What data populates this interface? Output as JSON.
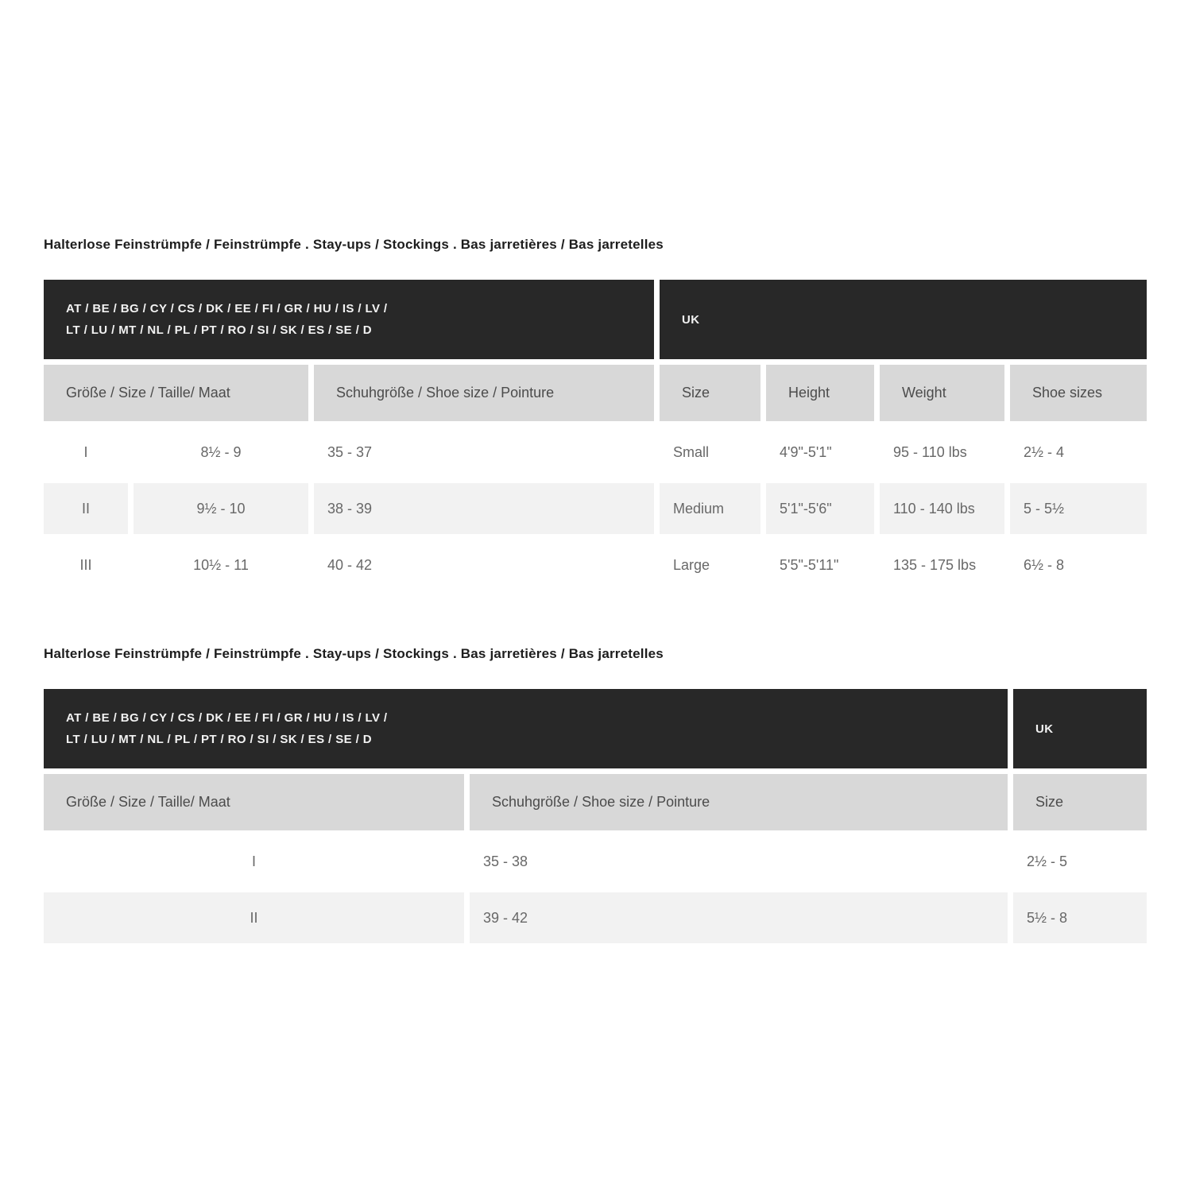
{
  "colors": {
    "header_bar_bg": "#282828",
    "header_bar_text": "#f2f2f2",
    "column_header_bg": "#d8d8d8",
    "column_header_text": "#4c4c4c",
    "stripe_row_bg": "#f2f2f2",
    "body_text": "#686868",
    "title_text": "#1d1d1d"
  },
  "section1": {
    "title": "Halterlose Feinstrümpfe / Feinstrümpfe . Stay-ups / Stockings . Bas jarretières / Bas jarretelles",
    "eu_header_line1": "AT / BE / BG / CY / CS / DK / EE / FI / GR / HU / IS / LV /",
    "eu_header_line2": "LT / LU / MT / NL / PL / PT / RO / SI / SK / ES / SE / D",
    "uk_header": "UK",
    "columns": {
      "groesse": "Größe / Size / Taille/ Maat",
      "schuhgroesse": "Schuhgröße / Shoe size / Pointure",
      "size": "Size",
      "height": "Height",
      "weight": "Weight",
      "shoe_sizes": "Shoe sizes"
    },
    "rows": [
      {
        "numeral": "I",
        "groesse": "8½ - 9",
        "schuhgroesse": "35 - 37",
        "size": "Small",
        "height": "4'9\"-5'1\"",
        "weight": "95 - 110 lbs",
        "shoe_sizes": "2½ - 4"
      },
      {
        "numeral": "II",
        "groesse": "9½ - 10",
        "schuhgroesse": "38 - 39",
        "size": "Medium",
        "height": "5'1\"-5'6\"",
        "weight": "110 - 140 lbs",
        "shoe_sizes": "5 - 5½"
      },
      {
        "numeral": "III",
        "groesse": "10½ - 11",
        "schuhgroesse": "40 - 42",
        "size": "Large",
        "height": "5'5\"-5'11\"",
        "weight": "135 - 175 lbs",
        "shoe_sizes": "6½ - 8"
      }
    ]
  },
  "section2": {
    "title": "Halterlose Feinstrümpfe / Feinstrümpfe . Stay-ups / Stockings . Bas jarretières / Bas jarretelles",
    "eu_header_line1": "AT / BE / BG / CY / CS / DK / EE / FI / GR / HU / IS / LV /",
    "eu_header_line2": "LT / LU / MT / NL / PL / PT / RO / SI / SK / ES / SE / D",
    "uk_header": "UK",
    "columns": {
      "groesse": "Größe / Size / Taille/ Maat",
      "schuhgroesse": "Schuhgröße / Shoe size / Pointure",
      "size": "Size"
    },
    "rows": [
      {
        "numeral": "I",
        "schuhgroesse": "35 - 38",
        "size": "2½ - 5"
      },
      {
        "numeral": "II",
        "schuhgroesse": "39 - 42",
        "size": "5½ - 8"
      }
    ]
  }
}
